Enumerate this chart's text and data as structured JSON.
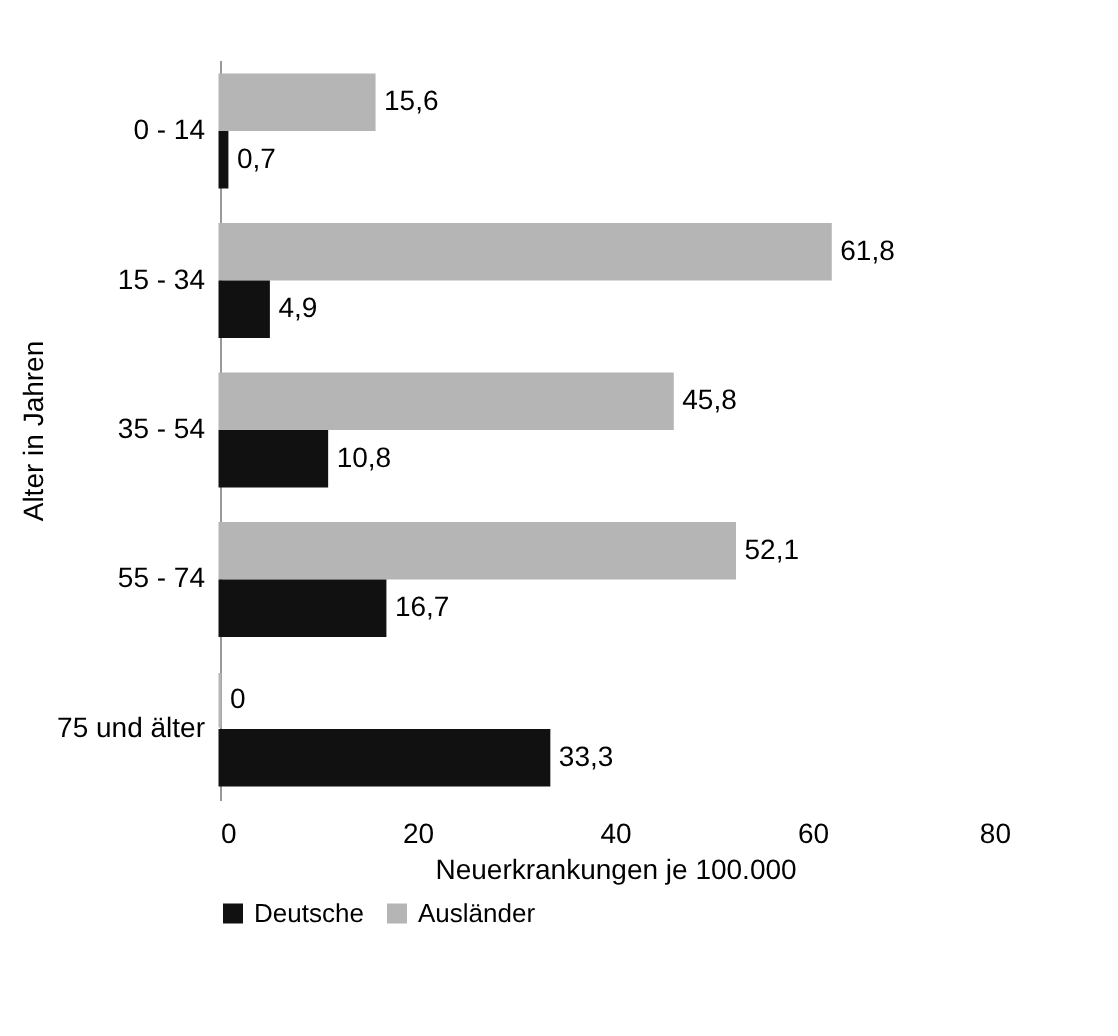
{
  "chart_data": {
    "type": "bar",
    "orientation": "horizontal",
    "xlabel": "Neuerkrankungen je 100.000",
    "ylabel": "Alter in Jahren",
    "categories": [
      "0 - 14",
      "15 - 34",
      "35 - 54",
      "55 - 74",
      "75 und älter"
    ],
    "series": [
      {
        "name": "Ausländer",
        "color": "#b5b5b5",
        "values": [
          15.6,
          61.8,
          45.8,
          52.1,
          0
        ],
        "value_labels": [
          "15,6",
          "61,8",
          "45,8",
          "52,1",
          "0"
        ]
      },
      {
        "name": "Deutsche",
        "color": "#111111",
        "values": [
          0.7,
          4.9,
          10.8,
          16.7,
          33.3
        ],
        "value_labels": [
          "0,7",
          "4,9",
          "10,8",
          "16,7",
          "33,3"
        ]
      }
    ],
    "xlim": [
      0,
      80
    ],
    "xticks": [
      0,
      20,
      40,
      60,
      80
    ],
    "grid": false,
    "legend": "bottom"
  }
}
